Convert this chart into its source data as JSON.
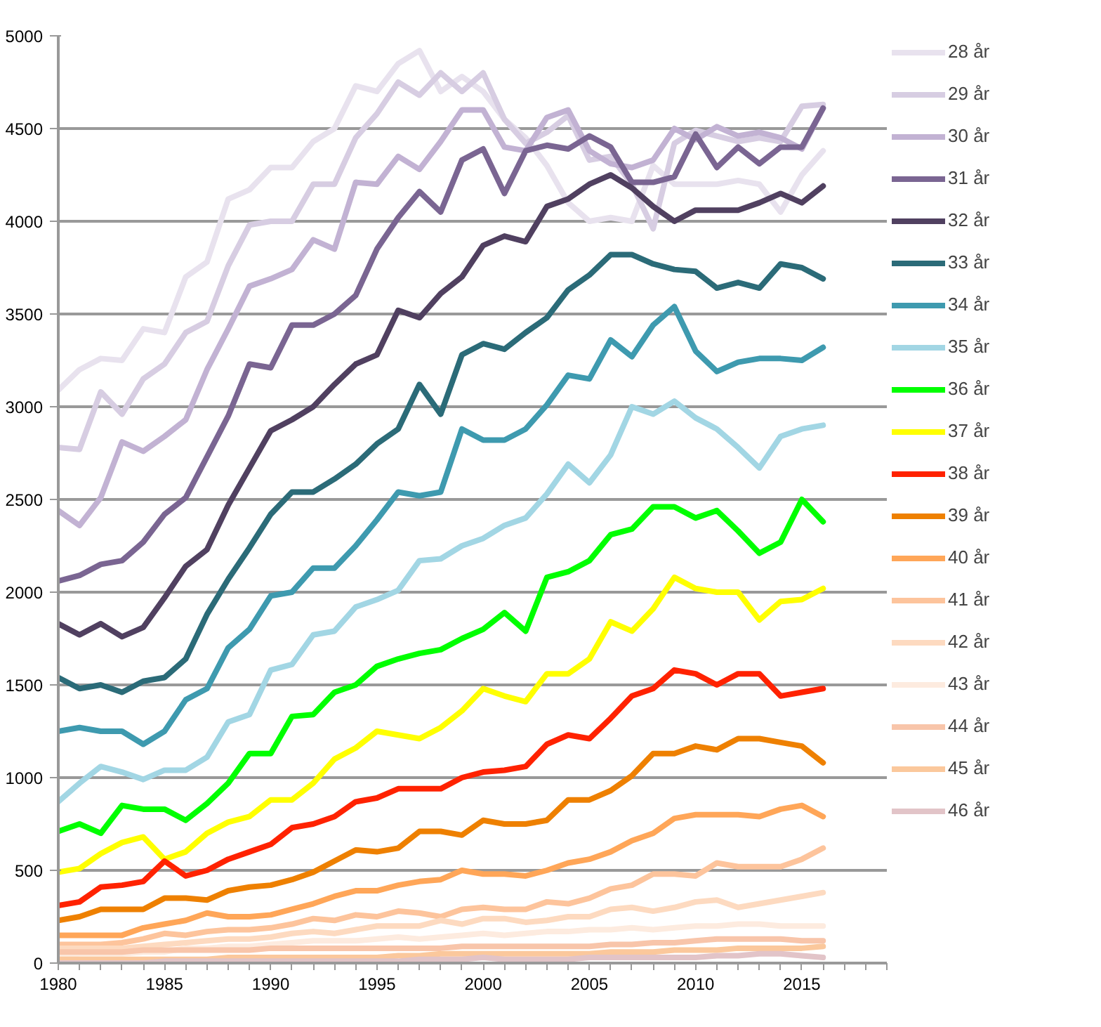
{
  "chart_data": {
    "type": "line",
    "x": [
      1980,
      1981,
      1982,
      1983,
      1984,
      1985,
      1986,
      1987,
      1988,
      1989,
      1990,
      1991,
      1992,
      1993,
      1994,
      1995,
      1996,
      1997,
      1998,
      1999,
      2000,
      2001,
      2002,
      2003,
      2004,
      2005,
      2006,
      2007,
      2008,
      2009,
      2010,
      2011,
      2012,
      2013,
      2014,
      2015,
      2016
    ],
    "xlim": [
      1980,
      2019
    ],
    "xticks": [
      1980,
      {
        "value": 1981,
        "label": null
      },
      {
        "value": 1982,
        "label": null
      },
      {
        "value": 1983,
        "label": null
      },
      {
        "value": 1984,
        "label": null
      },
      1985,
      {
        "value": 1986,
        "label": null
      },
      {
        "value": 1987,
        "label": null
      },
      {
        "value": 1988,
        "label": null
      },
      {
        "value": 1989,
        "label": null
      },
      1990,
      {
        "value": 1991,
        "label": null
      },
      {
        "value": 1992,
        "label": null
      },
      {
        "value": 1993,
        "label": null
      },
      {
        "value": 1994,
        "label": null
      },
      1995,
      {
        "value": 1996,
        "label": null
      },
      {
        "value": 1997,
        "label": null
      },
      {
        "value": 1998,
        "label": null
      },
      {
        "value": 1999,
        "label": null
      },
      2000,
      {
        "value": 2001,
        "label": null
      },
      {
        "value": 2002,
        "label": null
      },
      {
        "value": 2003,
        "label": null
      },
      {
        "value": 2004,
        "label": null
      },
      2005,
      {
        "value": 2006,
        "label": null
      },
      {
        "value": 2007,
        "label": null
      },
      {
        "value": 2008,
        "label": null
      },
      {
        "value": 2009,
        "label": null
      },
      2010,
      {
        "value": 2011,
        "label": null
      },
      {
        "value": 2012,
        "label": null
      },
      {
        "value": 2013,
        "label": null
      },
      {
        "value": 2014,
        "label": null
      },
      2015,
      {
        "value": 2016,
        "label": null
      },
      {
        "value": 2017,
        "label": null
      },
      {
        "value": 2018,
        "label": null
      },
      {
        "value": 2019,
        "label": null
      }
    ],
    "ylim": [
      0,
      5000
    ],
    "yticks": [
      0,
      500,
      1000,
      1500,
      2000,
      2500,
      3000,
      3500,
      4000,
      4500,
      5000
    ],
    "grid": "y",
    "legend": "right",
    "marker": "none",
    "line_style": "solid",
    "series": [
      {
        "name": "28 år",
        "color": "#e8e2ee",
        "values": [
          3090,
          3200,
          3260,
          3250,
          3420,
          3400,
          3700,
          3780,
          4120,
          4170,
          4290,
          4290,
          4430,
          4500,
          4730,
          4700,
          4850,
          4920,
          4700,
          4780,
          4700,
          4550,
          4450,
          4300,
          4100,
          4000,
          4020,
          4000,
          4300,
          4200,
          4200,
          4200,
          4220,
          4200,
          4050,
          4250,
          4380
        ]
      },
      {
        "name": "29 år",
        "color": "#d7cde2",
        "values": [
          2780,
          2770,
          3080,
          2960,
          3150,
          3230,
          3400,
          3460,
          3760,
          3980,
          4000,
          4000,
          4200,
          4200,
          4450,
          4580,
          4750,
          4680,
          4800,
          4700,
          4800,
          4550,
          4420,
          4480,
          4570,
          4330,
          4350,
          4200,
          3960,
          4420,
          4490,
          4460,
          4430,
          4450,
          4430,
          4620,
          4630
        ]
      },
      {
        "name": "30 år",
        "color": "#c2b2d3",
        "values": [
          2440,
          2360,
          2510,
          2810,
          2760,
          2840,
          2930,
          3200,
          3420,
          3650,
          3690,
          3740,
          3900,
          3850,
          4210,
          4200,
          4350,
          4280,
          4430,
          4600,
          4600,
          4400,
          4380,
          4560,
          4600,
          4380,
          4310,
          4290,
          4330,
          4500,
          4440,
          4510,
          4460,
          4480,
          4450,
          4390,
          4610
        ]
      },
      {
        "name": "31 år",
        "color": "#7a6592",
        "values": [
          2060,
          2090,
          2150,
          2170,
          2270,
          2420,
          2510,
          2730,
          2950,
          3230,
          3210,
          3440,
          3440,
          3500,
          3600,
          3850,
          4020,
          4160,
          4050,
          4330,
          4390,
          4150,
          4380,
          4410,
          4390,
          4460,
          4400,
          4210,
          4210,
          4240,
          4470,
          4290,
          4400,
          4310,
          4400,
          4400,
          4610
        ]
      },
      {
        "name": "32 år",
        "color": "#504060",
        "values": [
          1830,
          1770,
          1830,
          1760,
          1810,
          1970,
          2140,
          2230,
          2470,
          2670,
          2870,
          2930,
          3000,
          3120,
          3230,
          3280,
          3520,
          3480,
          3610,
          3700,
          3870,
          3920,
          3890,
          4080,
          4120,
          4200,
          4250,
          4180,
          4080,
          4000,
          4060,
          4060,
          4060,
          4100,
          4150,
          4100,
          4190
        ]
      },
      {
        "name": "33 år",
        "color": "#2b6b78",
        "values": [
          1540,
          1480,
          1500,
          1460,
          1520,
          1540,
          1640,
          1880,
          2070,
          2240,
          2420,
          2540,
          2540,
          2610,
          2690,
          2800,
          2880,
          3120,
          2960,
          3280,
          3340,
          3310,
          3400,
          3480,
          3630,
          3710,
          3820,
          3820,
          3770,
          3740,
          3730,
          3640,
          3670,
          3640,
          3770,
          3750,
          3690
        ]
      },
      {
        "name": "34 år",
        "color": "#3e9aaf",
        "values": [
          1250,
          1270,
          1250,
          1250,
          1180,
          1250,
          1420,
          1480,
          1700,
          1800,
          1980,
          2000,
          2130,
          2130,
          2250,
          2390,
          2540,
          2520,
          2540,
          2880,
          2820,
          2820,
          2880,
          3010,
          3170,
          3150,
          3360,
          3270,
          3440,
          3540,
          3300,
          3190,
          3240,
          3260,
          3260,
          3250,
          3320
        ]
      },
      {
        "name": "35 år",
        "color": "#a2d6e4",
        "values": [
          870,
          970,
          1060,
          1030,
          990,
          1040,
          1040,
          1110,
          1300,
          1340,
          1580,
          1610,
          1770,
          1790,
          1920,
          1960,
          2010,
          2170,
          2180,
          2250,
          2290,
          2360,
          2400,
          2530,
          2690,
          2590,
          2740,
          3000,
          2960,
          3030,
          2940,
          2880,
          2780,
          2670,
          2840,
          2880,
          2900
        ]
      },
      {
        "name": "36 år",
        "color": "#00ff00",
        "values": [
          710,
          750,
          700,
          850,
          830,
          830,
          770,
          860,
          970,
          1130,
          1130,
          1330,
          1340,
          1460,
          1500,
          1600,
          1640,
          1670,
          1690,
          1750,
          1800,
          1890,
          1790,
          2080,
          2110,
          2170,
          2310,
          2340,
          2460,
          2460,
          2400,
          2440,
          2330,
          2210,
          2270,
          2500,
          2380
        ]
      },
      {
        "name": "37 år",
        "color": "#ffff00",
        "values": [
          490,
          510,
          590,
          650,
          680,
          560,
          600,
          700,
          760,
          790,
          880,
          880,
          970,
          1100,
          1160,
          1250,
          1230,
          1210,
          1270,
          1360,
          1480,
          1440,
          1410,
          1560,
          1560,
          1640,
          1840,
          1790,
          1910,
          2080,
          2020,
          2000,
          2000,
          1850,
          1950,
          1960,
          2020
        ]
      },
      {
        "name": "38 år",
        "color": "#ff2200",
        "values": [
          310,
          330,
          410,
          420,
          440,
          550,
          470,
          500,
          560,
          600,
          640,
          730,
          750,
          790,
          870,
          890,
          940,
          940,
          940,
          1000,
          1030,
          1040,
          1060,
          1180,
          1230,
          1210,
          1320,
          1440,
          1480,
          1580,
          1560,
          1500,
          1560,
          1560,
          1440,
          1460,
          1480
        ]
      },
      {
        "name": "39 år",
        "color": "#ee8000",
        "values": [
          230,
          250,
          290,
          290,
          290,
          350,
          350,
          340,
          390,
          410,
          420,
          450,
          490,
          550,
          610,
          600,
          620,
          710,
          710,
          690,
          770,
          750,
          750,
          770,
          880,
          880,
          930,
          1010,
          1130,
          1130,
          1170,
          1150,
          1210,
          1210,
          1190,
          1170,
          1080
        ]
      },
      {
        "name": "40 år",
        "color": "#ffa658",
        "values": [
          150,
          150,
          150,
          150,
          190,
          210,
          230,
          270,
          250,
          250,
          260,
          290,
          320,
          360,
          390,
          390,
          420,
          440,
          450,
          500,
          480,
          480,
          470,
          500,
          540,
          560,
          600,
          660,
          700,
          780,
          800,
          800,
          800,
          790,
          830,
          850,
          790
        ]
      },
      {
        "name": "41 år",
        "color": "#fdc49c",
        "values": [
          100,
          100,
          100,
          110,
          130,
          160,
          150,
          170,
          180,
          180,
          190,
          210,
          240,
          230,
          260,
          250,
          280,
          270,
          250,
          290,
          300,
          290,
          290,
          330,
          320,
          350,
          400,
          420,
          480,
          480,
          470,
          540,
          520,
          520,
          520,
          560,
          620
        ]
      },
      {
        "name": "42 år",
        "color": "#fddac0",
        "values": [
          80,
          80,
          80,
          80,
          90,
          100,
          110,
          120,
          130,
          130,
          140,
          160,
          170,
          160,
          180,
          200,
          200,
          200,
          230,
          210,
          240,
          240,
          220,
          230,
          250,
          250,
          290,
          300,
          280,
          300,
          330,
          340,
          300,
          320,
          340,
          360,
          380
        ]
      },
      {
        "name": "43 år",
        "color": "#fdebdf",
        "values": [
          40,
          50,
          50,
          50,
          60,
          60,
          80,
          80,
          90,
          90,
          100,
          110,
          120,
          120,
          120,
          130,
          140,
          130,
          140,
          150,
          160,
          150,
          160,
          170,
          170,
          180,
          180,
          190,
          180,
          190,
          200,
          200,
          210,
          210,
          200,
          200,
          200
        ]
      },
      {
        "name": "44 år",
        "color": "#f8c5aa",
        "values": [
          60,
          60,
          60,
          60,
          70,
          70,
          70,
          70,
          70,
          70,
          80,
          80,
          80,
          80,
          80,
          80,
          80,
          80,
          80,
          90,
          90,
          90,
          90,
          90,
          90,
          90,
          100,
          100,
          110,
          110,
          120,
          130,
          130,
          130,
          130,
          120,
          120
        ]
      },
      {
        "name": "45 år",
        "color": "#fbc89c",
        "values": [
          20,
          20,
          20,
          20,
          20,
          20,
          20,
          20,
          30,
          30,
          30,
          30,
          30,
          30,
          30,
          30,
          40,
          40,
          50,
          50,
          50,
          50,
          50,
          50,
          50,
          50,
          60,
          60,
          60,
          70,
          70,
          70,
          80,
          80,
          80,
          80,
          90
        ]
      },
      {
        "name": "46 år",
        "color": "#e2c4c8",
        "values": [
          0,
          0,
          0,
          0,
          0,
          10,
          10,
          10,
          10,
          10,
          10,
          10,
          10,
          10,
          10,
          10,
          10,
          20,
          20,
          20,
          30,
          20,
          20,
          20,
          20,
          30,
          30,
          30,
          30,
          30,
          30,
          40,
          40,
          50,
          50,
          40,
          30
        ]
      }
    ]
  }
}
